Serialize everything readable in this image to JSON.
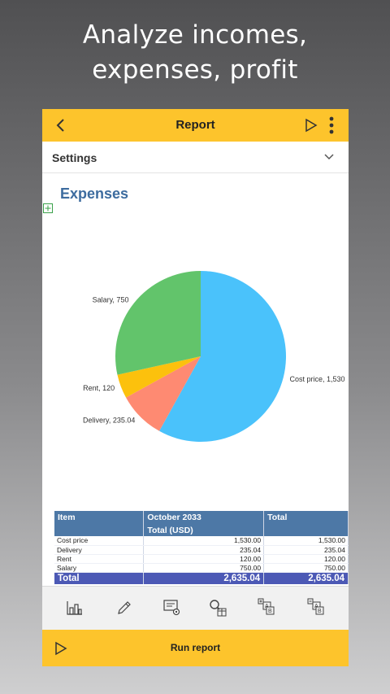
{
  "headline": {
    "line1": "Analyze incomes,",
    "line2": "expenses, profit"
  },
  "appbar": {
    "title": "Report"
  },
  "settings": {
    "label": "Settings"
  },
  "report": {
    "title": "Expenses"
  },
  "chart_data": {
    "type": "pie",
    "title": "",
    "slices": [
      {
        "label": "Cost price, 1,530",
        "name": "Cost price",
        "value": 1530,
        "color": "#4ac2fb"
      },
      {
        "label": "Delivery, 235.04",
        "name": "Delivery",
        "value": 235.04,
        "color": "#fe8a72"
      },
      {
        "label": "Rent, 120",
        "name": "Rent",
        "value": 120,
        "color": "#fcc10d"
      },
      {
        "label": "Salary, 750",
        "name": "Salary",
        "value": 750,
        "color": "#62c46b"
      }
    ]
  },
  "table": {
    "headers": {
      "item": "Item",
      "period": "October 2033",
      "total": "Total"
    },
    "subheader": "Total (USD)",
    "rows": [
      {
        "item": "Cost price",
        "period": "1,530.00",
        "total": "1,530.00"
      },
      {
        "item": "Delivery",
        "period": "235.04",
        "total": "235.04"
      },
      {
        "item": "Rent",
        "period": "120.00",
        "total": "120.00"
      },
      {
        "item": "Salary",
        "period": "750.00",
        "total": "750.00"
      }
    ],
    "total_row": {
      "label": "Total",
      "period": "2,635.04",
      "total": "2,635.04"
    }
  },
  "toolbar": {
    "icons": [
      "chart-type-icon",
      "edit-pencil-icon",
      "settings-gear-icon",
      "search-filter-icon",
      "expand-all-icon",
      "collapse-all-icon"
    ]
  },
  "runbar": {
    "label": "Run report"
  }
}
